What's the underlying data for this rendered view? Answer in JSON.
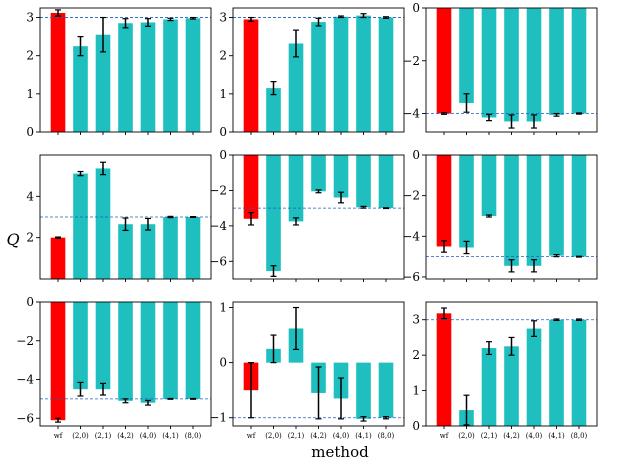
{
  "chart_data": {
    "type": "bar",
    "layout": "3x3 grid of bar charts with error bars",
    "xlabel": "method",
    "ylabel": "Q",
    "categories": [
      "wf",
      "(2,0)",
      "(2,1)",
      "(4,2)",
      "(4,0)",
      "(4,1)",
      "(8,0)"
    ],
    "colors": {
      "first_bar": "#ff0000",
      "other_bars": "#1fbfbf",
      "reference_line": "#1f5fbf",
      "error_bar": "#000000"
    },
    "panels": [
      {
        "ylim": [
          0,
          3.25
        ],
        "yticks": [
          0,
          1,
          2,
          3
        ],
        "reference": 3.0,
        "values": [
          3.12,
          2.25,
          2.55,
          2.85,
          2.87,
          2.95,
          2.98
        ],
        "errors": [
          0.08,
          0.25,
          0.45,
          0.12,
          0.1,
          0.03,
          0.02
        ]
      },
      {
        "ylim": [
          0,
          3.25
        ],
        "yticks": [
          0,
          1,
          2,
          3
        ],
        "reference": 3.0,
        "values": [
          2.95,
          1.15,
          2.32,
          2.88,
          3.02,
          3.05,
          3.0
        ],
        "errors": [
          0.05,
          0.17,
          0.35,
          0.1,
          0.02,
          0.05,
          0.02
        ]
      },
      {
        "ylim": [
          -4.7,
          0
        ],
        "yticks": [
          0,
          -2,
          -4
        ],
        "reference": -4.0,
        "values": [
          -4.0,
          -3.6,
          -4.15,
          -4.3,
          -4.3,
          -4.05,
          -4.0
        ],
        "errors": [
          0.03,
          0.35,
          0.12,
          0.25,
          0.25,
          0.05,
          0.02
        ]
      },
      {
        "ylim": [
          0,
          6.0
        ],
        "yticks": [
          2,
          4
        ],
        "reference": 3.0,
        "values": [
          2.0,
          5.1,
          5.35,
          2.65,
          2.65,
          3.0,
          3.0
        ],
        "errors": [
          0.03,
          0.1,
          0.3,
          0.3,
          0.28,
          0.03,
          0.02
        ]
      },
      {
        "ylim": [
          -7.0,
          0
        ],
        "yticks": [
          0,
          -2,
          -4,
          -6
        ],
        "reference": -3.0,
        "values": [
          -3.6,
          -6.55,
          -3.75,
          -2.05,
          -2.4,
          -2.95,
          -3.0
        ],
        "errors": [
          0.35,
          0.3,
          0.2,
          0.08,
          0.3,
          0.05,
          0.02
        ]
      },
      {
        "ylim": [
          -6.1,
          0
        ],
        "yticks": [
          0,
          -2,
          -4,
          -6
        ],
        "reference": -5.0,
        "values": [
          -4.5,
          -4.55,
          -3.0,
          -5.45,
          -5.45,
          -4.95,
          -5.0
        ],
        "errors": [
          0.28,
          0.3,
          0.05,
          0.3,
          0.3,
          0.05,
          0.02
        ]
      },
      {
        "ylim": [
          -6.4,
          0
        ],
        "yticks": [
          0,
          -2,
          -4,
          -6
        ],
        "reference": -5.0,
        "values": [
          -6.1,
          -4.5,
          -4.5,
          -5.1,
          -5.2,
          -5.0,
          -5.0
        ],
        "errors": [
          0.1,
          0.35,
          0.3,
          0.1,
          0.12,
          0.02,
          0.02
        ]
      },
      {
        "ylim": [
          -1.15,
          1.1
        ],
        "yticks": [
          -1,
          0,
          1
        ],
        "reference": -1.0,
        "values": [
          -0.5,
          0.25,
          0.62,
          -0.55,
          -0.65,
          -1.02,
          -1.0
        ],
        "errors": [
          0.5,
          0.25,
          0.38,
          0.47,
          0.37,
          0.04,
          0.02
        ]
      },
      {
        "ylim": [
          0,
          3.5
        ],
        "yticks": [
          0,
          1,
          2,
          3
        ],
        "reference": 3.0,
        "values": [
          3.18,
          0.45,
          2.2,
          2.25,
          2.75,
          3.0,
          3.0
        ],
        "errors": [
          0.15,
          0.42,
          0.18,
          0.25,
          0.22,
          0.02,
          0.02
        ]
      }
    ]
  }
}
